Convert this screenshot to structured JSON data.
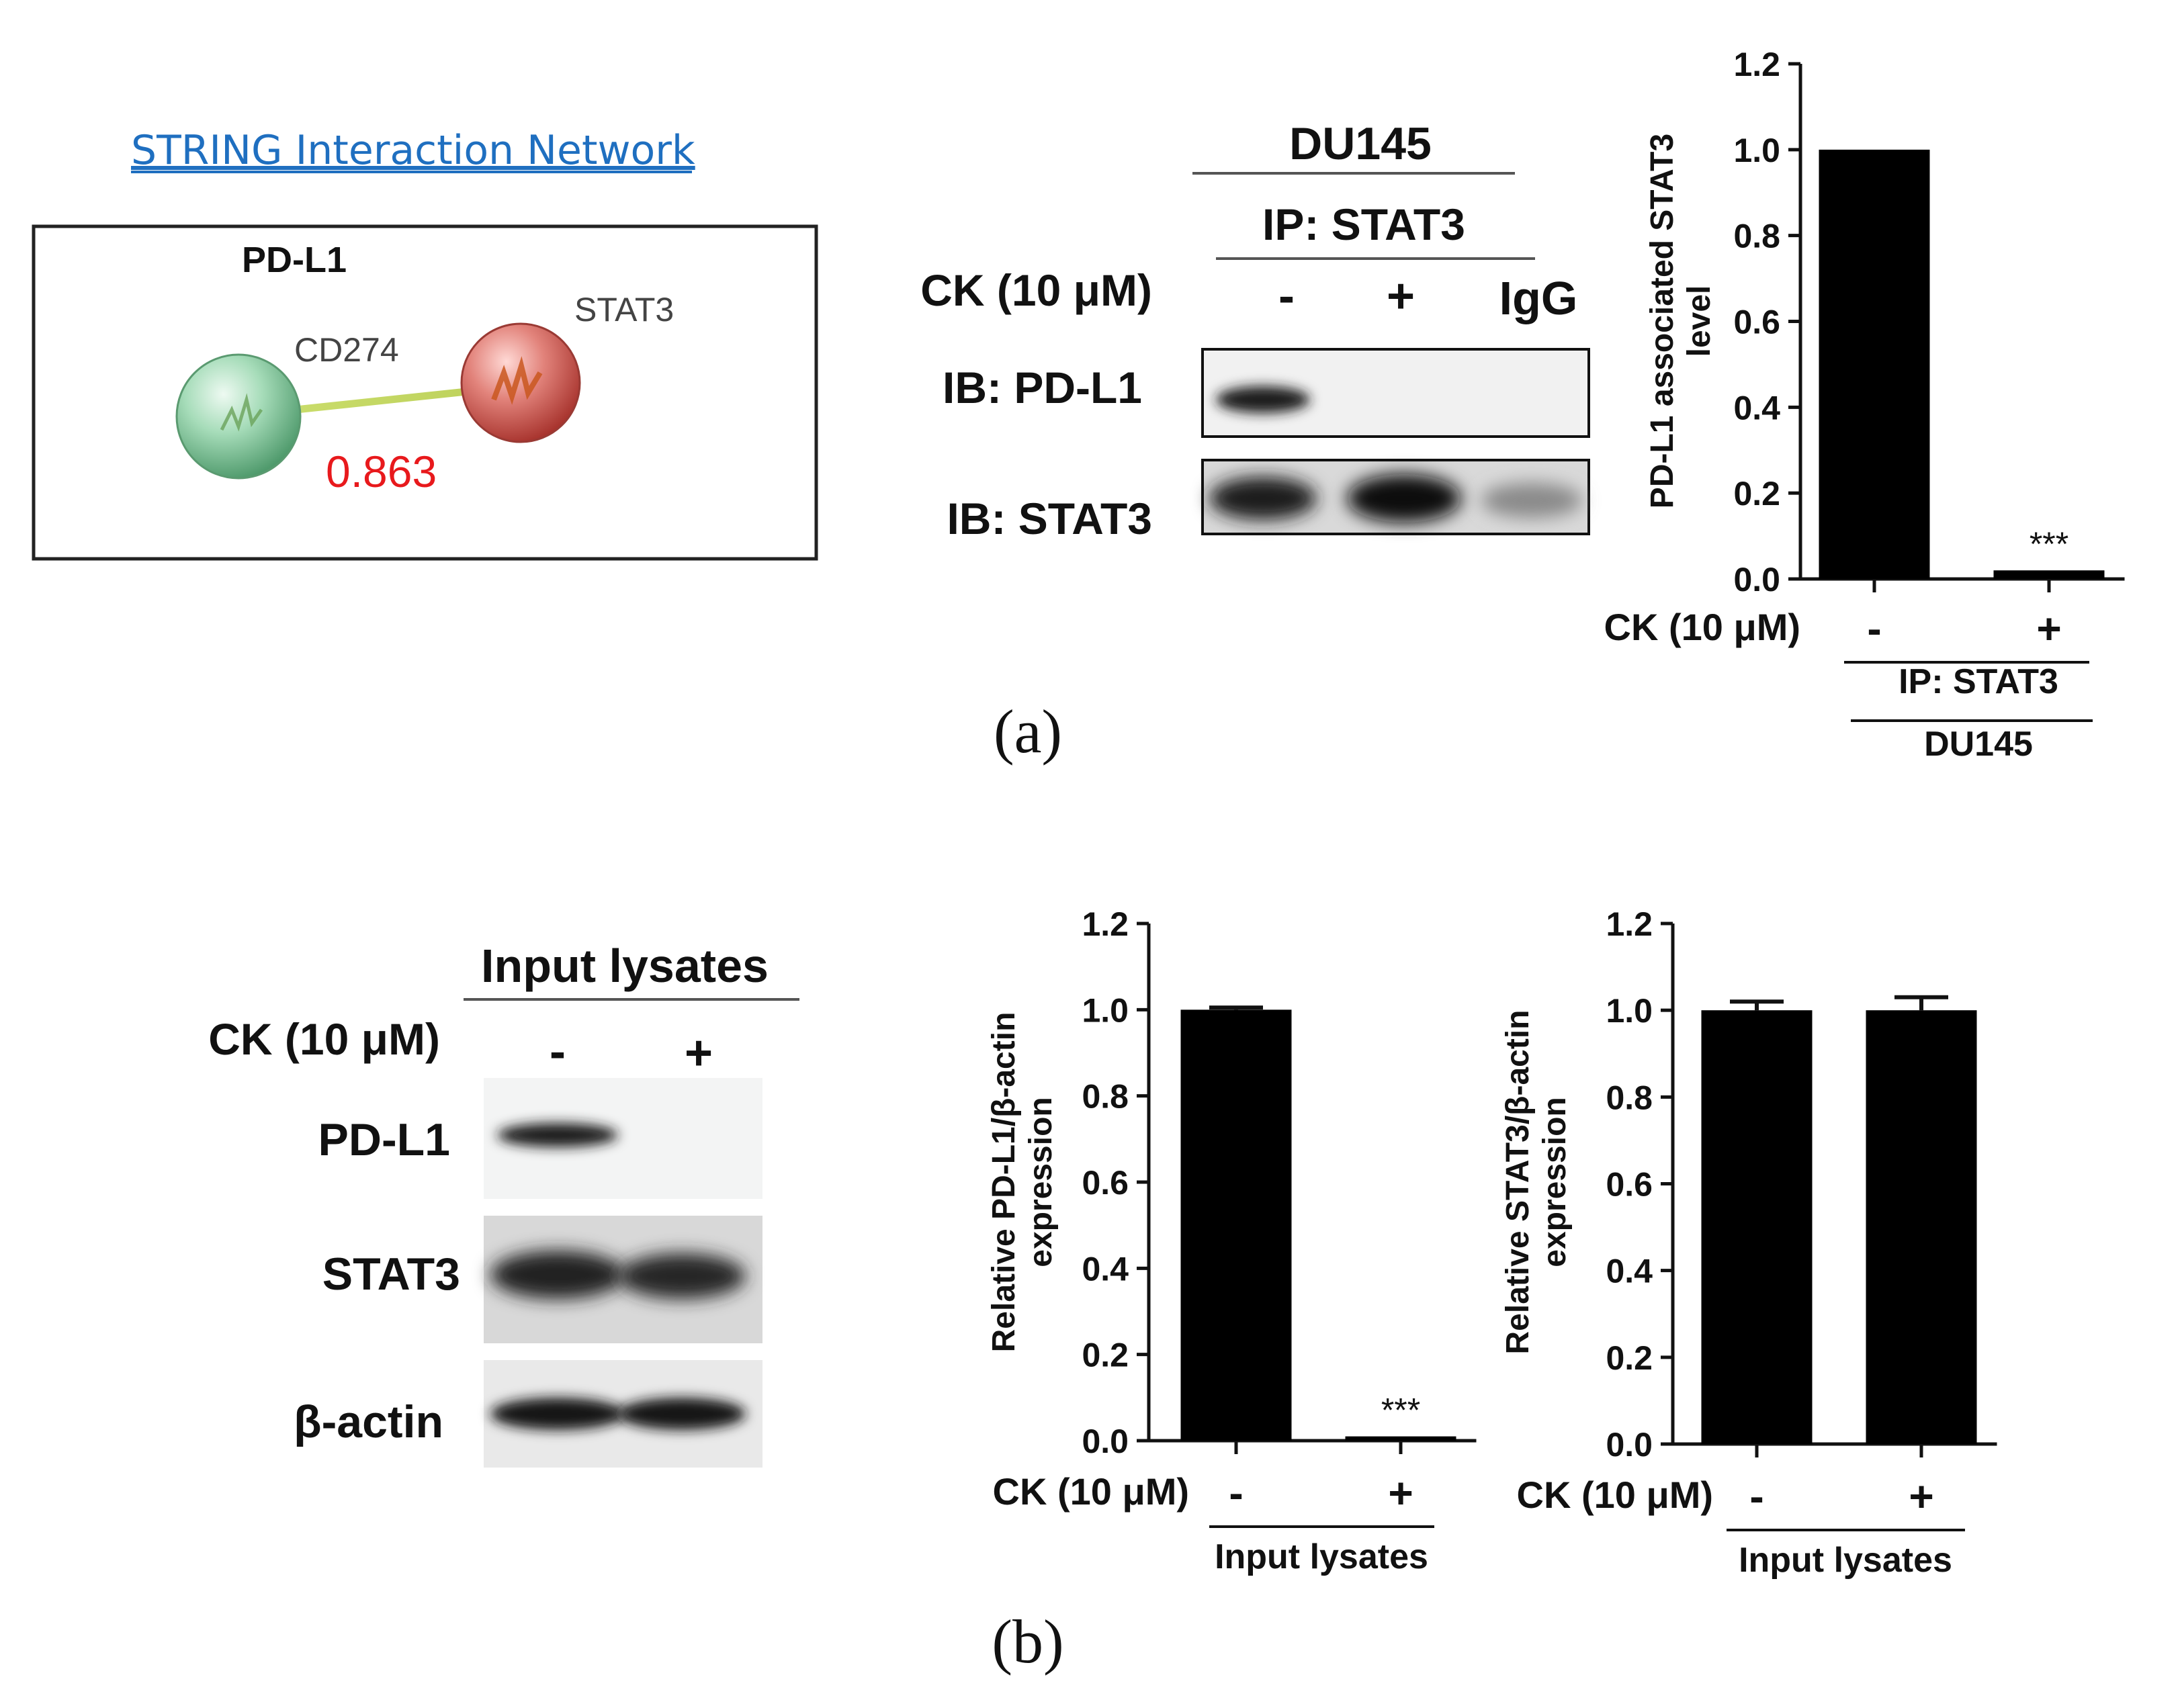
{
  "network": {
    "link_text": "STRING Interaction Network",
    "protein_label": "PD-L1",
    "node_a": "CD274",
    "node_b": "STAT3",
    "score": "0.863",
    "score_color": "#e8191c",
    "link_color": "#1f6fc0"
  },
  "ip_blot": {
    "cell_line": "DU145",
    "ip_label": "IP: STAT3",
    "treatment_label": "CK (10 μM)",
    "lanes": [
      "-",
      "+",
      "IgG"
    ],
    "rows": [
      "IB: PD-L1",
      "IB: STAT3"
    ]
  },
  "input_blot": {
    "title": "Input lysates",
    "treatment_label": "CK (10 μM)",
    "lanes": [
      "-",
      "+"
    ],
    "rows": [
      "PD-L1",
      "STAT3",
      "β-actin"
    ]
  },
  "panel_labels": {
    "a": "(a)",
    "b": "(b)"
  },
  "chart_data": [
    {
      "type": "bar",
      "ylabel_line1": "PD-L1 associated STAT3",
      "ylabel_line2": "level",
      "ylim": [
        0,
        1.2
      ],
      "yticks": [
        "0.0",
        "0.2",
        "0.4",
        "0.6",
        "0.8",
        "1.0",
        "1.2"
      ],
      "x_row_label": "CK (10 μM)",
      "categories": [
        "-",
        "+"
      ],
      "values": [
        1.0,
        0.02
      ],
      "errors": [
        0,
        0
      ],
      "annotations": [
        "",
        "***"
      ],
      "group_labels": [
        "IP: STAT3",
        "DU145"
      ],
      "color": "#000000"
    },
    {
      "type": "bar",
      "ylabel_line1": "Relative PD-L1/β-actin",
      "ylabel_line2": "expression",
      "ylim": [
        0,
        1.2
      ],
      "yticks": [
        "0.0",
        "0.2",
        "0.4",
        "0.6",
        "0.8",
        "1.0",
        "1.2"
      ],
      "x_row_label": "CK (10 μM)",
      "categories": [
        "-",
        "+"
      ],
      "values": [
        1.0,
        0.01
      ],
      "errors": [
        0.005,
        0
      ],
      "annotations": [
        "",
        "***"
      ],
      "group_labels": [
        "Input lysates"
      ],
      "color": "#000000"
    },
    {
      "type": "bar",
      "ylabel_line1": "Relative STAT3/β-actin",
      "ylabel_line2": "expression",
      "ylim": [
        0,
        1.2
      ],
      "yticks": [
        "0.0",
        "0.2",
        "0.4",
        "0.6",
        "0.8",
        "1.0",
        "1.2"
      ],
      "x_row_label": "CK (10 μM)",
      "categories": [
        "-",
        "+"
      ],
      "values": [
        1.0,
        1.0
      ],
      "errors": [
        0.02,
        0.03
      ],
      "annotations": [
        "",
        ""
      ],
      "group_labels": [
        "Input lysates"
      ],
      "color": "#000000"
    }
  ]
}
